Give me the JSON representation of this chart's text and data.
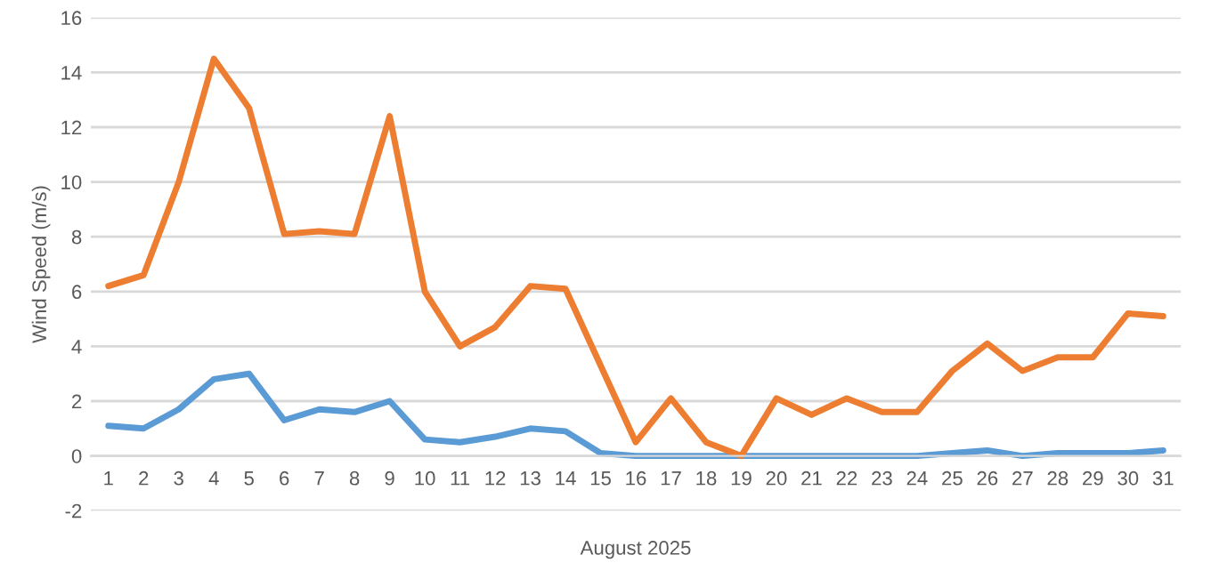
{
  "chart_data": {
    "type": "line",
    "ylabel": "Wind Speed (m/s)",
    "xlabel": "August 2025",
    "categories": [
      "1",
      "2",
      "3",
      "4",
      "5",
      "6",
      "7",
      "8",
      "9",
      "10",
      "11",
      "12",
      "13",
      "14",
      "15",
      "16",
      "17",
      "18",
      "19",
      "20",
      "21",
      "22",
      "23",
      "24",
      "25",
      "26",
      "27",
      "28",
      "29",
      "30",
      "31"
    ],
    "series": [
      {
        "color": "#5b9bd5",
        "values": [
          1.1,
          1.0,
          1.7,
          2.8,
          3.0,
          1.3,
          1.7,
          1.6,
          2.0,
          0.6,
          0.5,
          0.7,
          1.0,
          0.9,
          0.1,
          0,
          0,
          0,
          0,
          0,
          0,
          0,
          0,
          0,
          0.1,
          0.2,
          0,
          0.1,
          0.1,
          0.1,
          0.2
        ]
      },
      {
        "color": "#ed7d31",
        "values": [
          6.2,
          6.6,
          10.0,
          14.5,
          12.7,
          8.1,
          8.2,
          8.1,
          12.4,
          6.0,
          4.0,
          4.7,
          6.2,
          6.1,
          3.3,
          0.5,
          2.1,
          0.5,
          0,
          2.1,
          1.5,
          2.1,
          1.6,
          1.6,
          3.1,
          4.1,
          3.1,
          3.6,
          3.6,
          5.2,
          5.1
        ]
      }
    ],
    "ylim": [
      -2,
      16
    ],
    "yticks": [
      -2,
      0,
      2,
      4,
      6,
      8,
      10,
      12,
      14,
      16
    ],
    "grid": "y",
    "marker": "none",
    "line_style": "solid"
  }
}
